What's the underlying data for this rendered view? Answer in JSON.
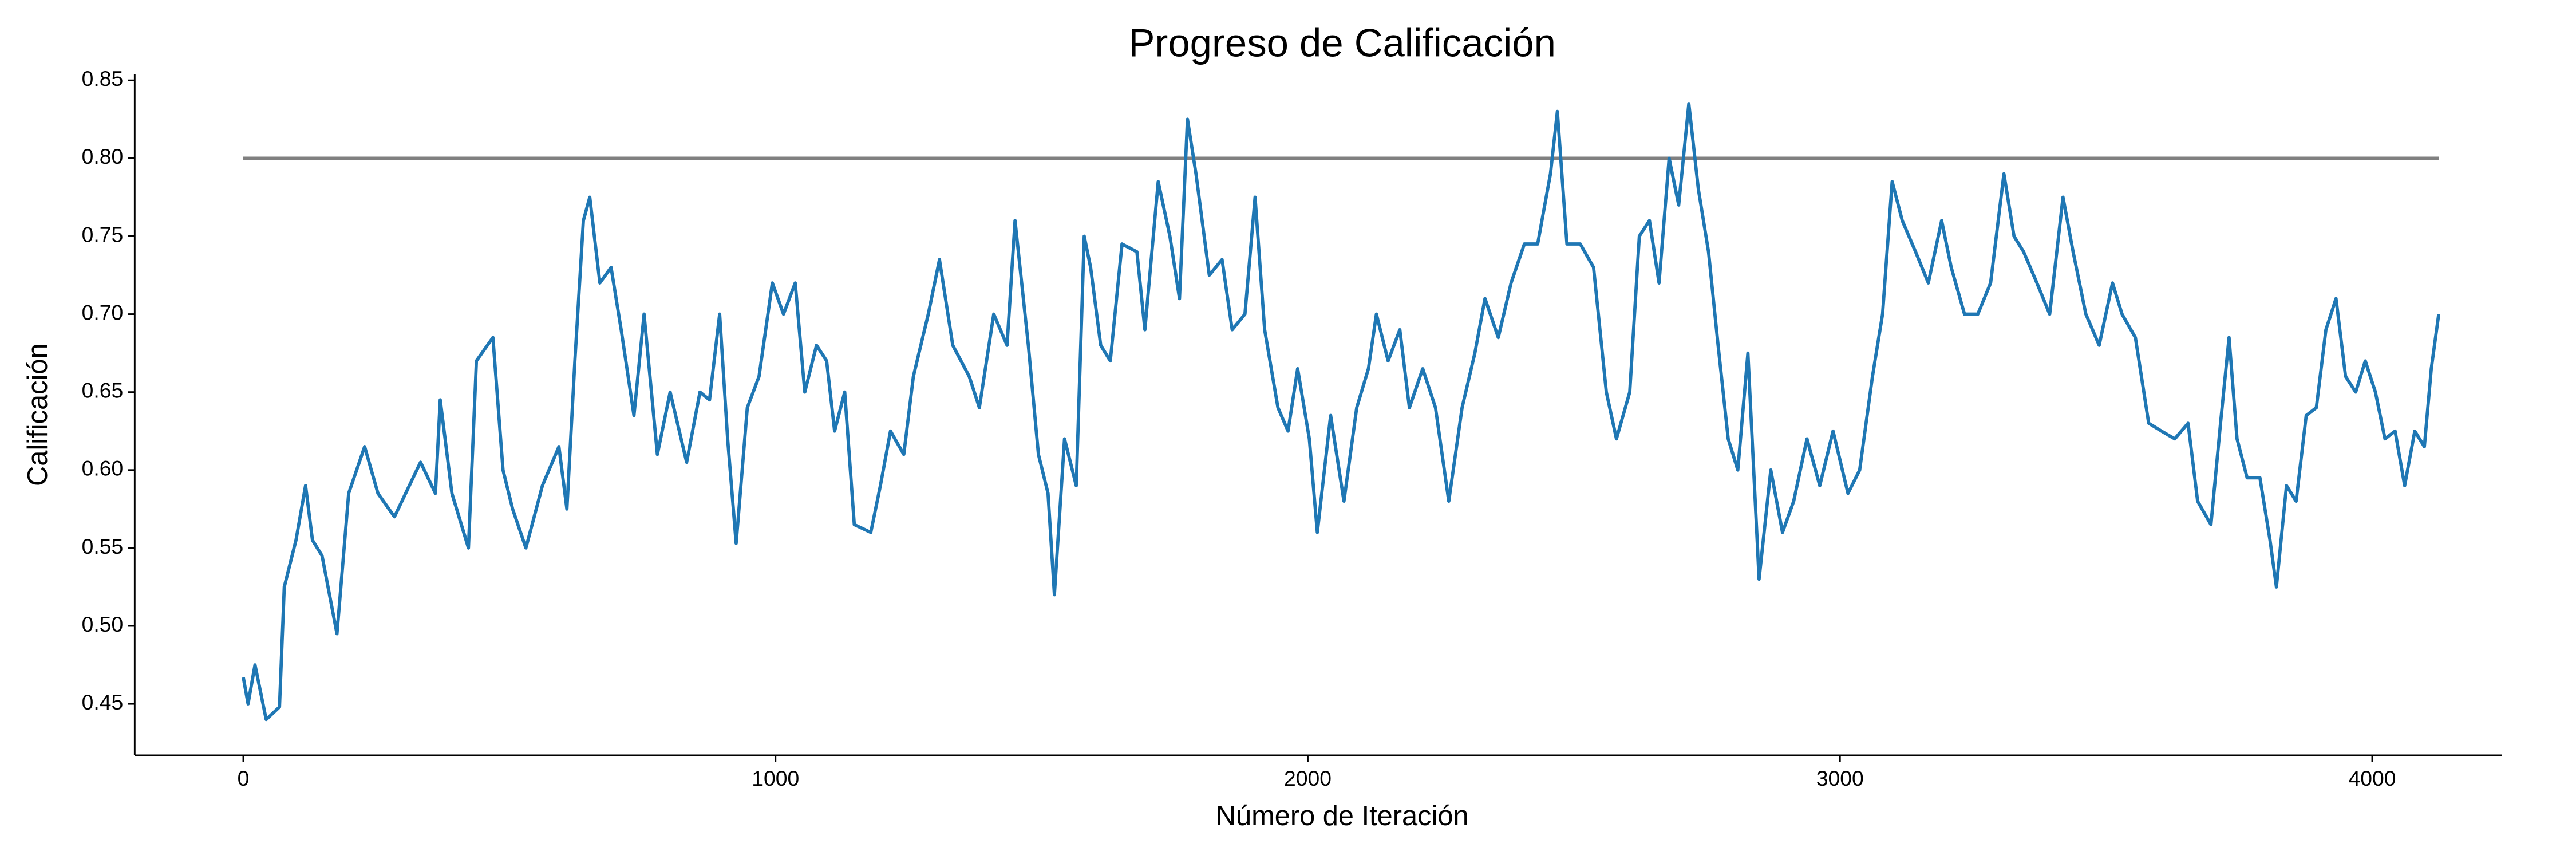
{
  "chart_data": {
    "type": "line",
    "title": "Progreso de Calificación",
    "xlabel": "Número de Iteración",
    "ylabel": "Calificación",
    "xlim": [
      -204,
      4244
    ],
    "ylim": [
      0.417,
      0.854
    ],
    "xticks": [
      0,
      1000,
      2000,
      3000,
      4000
    ],
    "yticks": [
      0.45,
      {
        "value": 0.5,
        "label": "0.50"
      },
      0.55,
      {
        "value": 0.6,
        "label": "0.60"
      },
      0.65,
      {
        "value": 0.7,
        "label": "0.70"
      },
      0.75,
      {
        "value": 0.8,
        "label": "0.80"
      },
      0.85
    ],
    "grid": false,
    "series": [
      {
        "color": "#1f77b4",
        "x": [
          0,
          9,
          22,
          43,
          68,
          77,
          99,
          117,
          130,
          148,
          176,
          198,
          228,
          253,
          284,
          333,
          361,
          370,
          392,
          423,
          438,
          469,
          488,
          506,
          531,
          562,
          593,
          608,
          623,
          639,
          651,
          670,
          691,
          710,
          734,
          753,
          778,
          802,
          833,
          858,
          876,
          895,
          910,
          926,
          947,
          969,
          994,
          1015,
          1037,
          1055,
          1077,
          1096,
          1111,
          1130,
          1148,
          1179,
          1197,
          1216,
          1241,
          1259,
          1287,
          1308,
          1333,
          1364,
          1383,
          1410,
          1435,
          1450,
          1475,
          1494,
          1512,
          1524,
          1543,
          1565,
          1580,
          1592,
          1611,
          1629,
          1651,
          1679,
          1694,
          1719,
          1741,
          1759,
          1774,
          1790,
          1815,
          1839,
          1858,
          1882,
          1901,
          1919,
          1944,
          1963,
          1981,
          2003,
          2018,
          2043,
          2068,
          2092,
          2114,
          2129,
          2151,
          2173,
          2191,
          2216,
          2240,
          2265,
          2290,
          2314,
          2333,
          2358,
          2382,
          2407,
          2432,
          2456,
          2469,
          2487,
          2512,
          2537,
          2561,
          2580,
          2605,
          2623,
          2642,
          2660,
          2679,
          2697,
          2716,
          2734,
          2753,
          2771,
          2790,
          2808,
          2827,
          2848,
          2870,
          2892,
          2913,
          2938,
          2962,
          2987,
          3015,
          3037,
          3061,
          3080,
          3098,
          3117,
          3142,
          3166,
          3191,
          3209,
          3234,
          3259,
          3283,
          3308,
          3327,
          3345,
          3370,
          3394,
          3419,
          3438,
          3462,
          3487,
          3512,
          3530,
          3555,
          3580,
          3604,
          3629,
          3654,
          3672,
          3697,
          3715,
          3731,
          3746,
          3765,
          3789,
          3808,
          3820,
          3839,
          3857,
          3876,
          3895,
          3913,
          3932,
          3950,
          3969,
          3987,
          4006,
          4024,
          4043,
          4061,
          4080,
          4098,
          4111,
          4125
        ],
        "values": [
          0.467,
          0.45,
          0.475,
          0.44,
          0.448,
          0.525,
          0.555,
          0.59,
          0.555,
          0.545,
          0.495,
          0.585,
          0.615,
          0.585,
          0.57,
          0.605,
          0.585,
          0.645,
          0.585,
          0.55,
          0.67,
          0.685,
          0.6,
          0.575,
          0.55,
          0.59,
          0.615,
          0.575,
          0.67,
          0.76,
          0.775,
          0.72,
          0.73,
          0.69,
          0.635,
          0.7,
          0.61,
          0.65,
          0.605,
          0.65,
          0.645,
          0.7,
          0.62,
          0.553,
          0.64,
          0.66,
          0.72,
          0.7,
          0.72,
          0.65,
          0.68,
          0.67,
          0.625,
          0.65,
          0.565,
          0.56,
          0.59,
          0.625,
          0.61,
          0.66,
          0.7,
          0.735,
          0.68,
          0.66,
          0.64,
          0.7,
          0.68,
          0.76,
          0.68,
          0.61,
          0.585,
          0.52,
          0.62,
          0.59,
          0.75,
          0.73,
          0.68,
          0.67,
          0.745,
          0.74,
          0.69,
          0.785,
          0.75,
          0.71,
          0.825,
          0.79,
          0.725,
          0.735,
          0.69,
          0.7,
          0.775,
          0.69,
          0.64,
          0.625,
          0.665,
          0.62,
          0.56,
          0.635,
          0.58,
          0.64,
          0.665,
          0.7,
          0.67,
          0.69,
          0.64,
          0.665,
          0.64,
          0.58,
          0.64,
          0.675,
          0.71,
          0.685,
          0.72,
          0.745,
          0.745,
          0.79,
          0.83,
          0.745,
          0.745,
          0.73,
          0.65,
          0.62,
          0.65,
          0.75,
          0.76,
          0.72,
          0.8,
          0.77,
          0.835,
          0.78,
          0.74,
          0.68,
          0.62,
          0.6,
          0.675,
          0.53,
          0.6,
          0.56,
          0.58,
          0.62,
          0.59,
          0.625,
          0.585,
          0.6,
          0.66,
          0.7,
          0.785,
          0.76,
          0.74,
          0.72,
          0.76,
          0.73,
          0.7,
          0.7,
          0.72,
          0.79,
          0.75,
          0.74,
          0.72,
          0.7,
          0.775,
          0.74,
          0.7,
          0.68,
          0.72,
          0.7,
          0.685,
          0.63,
          0.625,
          0.62,
          0.63,
          0.58,
          0.565,
          0.63,
          0.685,
          0.62,
          0.595,
          0.595,
          0.555,
          0.525,
          0.59,
          0.58,
          0.635,
          0.64,
          0.69,
          0.71,
          0.66,
          0.65,
          0.67,
          0.65,
          0.62,
          0.625,
          0.59,
          0.625,
          0.615,
          0.665,
          0.7
        ]
      },
      {
        "color": "#808080",
        "x": [
          0,
          4125
        ],
        "values": [
          0.8,
          0.8
        ]
      }
    ]
  }
}
